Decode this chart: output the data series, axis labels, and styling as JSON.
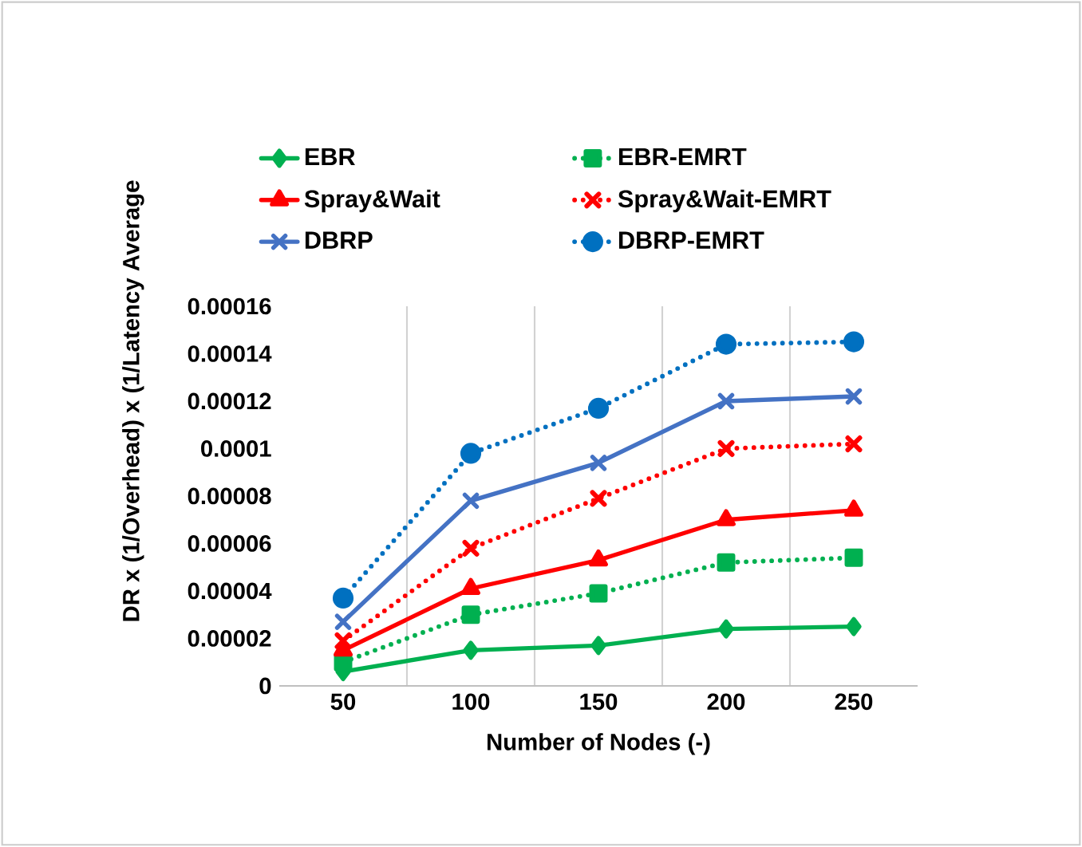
{
  "chart_data": {
    "type": "line",
    "xlabel": "Number of Nodes (-)",
    "ylabel": "DR x (1/Overhead) x (1/Latency Average",
    "categories": [
      "50",
      "100",
      "150",
      "200",
      "250"
    ],
    "ylim": [
      0,
      0.00016
    ],
    "yticks": [
      {
        "value": 0,
        "label": "0"
      },
      {
        "value": 2e-05,
        "label": "0.00002"
      },
      {
        "value": 4e-05,
        "label": "0.00004"
      },
      {
        "value": 6e-05,
        "label": "0.00006"
      },
      {
        "value": 8e-05,
        "label": "0.00008"
      },
      {
        "value": 0.0001,
        "label": "0.0001"
      },
      {
        "value": 0.00012,
        "label": "0.00012"
      },
      {
        "value": 0.00014,
        "label": "0.00014"
      },
      {
        "value": 0.00016,
        "label": "0.00016"
      }
    ],
    "grid": "x",
    "legend": "top",
    "series": [
      {
        "name": "EBR",
        "color": "#00b050",
        "marker": "diamond",
        "line_style": "solid",
        "values": [
          6e-06,
          1.5e-05,
          1.7e-05,
          2.4e-05,
          2.5e-05
        ]
      },
      {
        "name": "EBR-EMRT",
        "color": "#00b050",
        "marker": "square",
        "line_style": "dotted",
        "values": [
          1e-05,
          3e-05,
          3.9e-05,
          5.2e-05,
          5.4e-05
        ]
      },
      {
        "name": "Spray&Wait",
        "color": "#ff0000",
        "marker": "triangle",
        "line_style": "solid",
        "values": [
          1.5e-05,
          4.1e-05,
          5.3e-05,
          7e-05,
          7.4e-05
        ]
      },
      {
        "name": "Spray&Wait-EMRT",
        "color": "#ff0000",
        "marker": "cross",
        "line_style": "dotted",
        "values": [
          1.9e-05,
          5.8e-05,
          7.9e-05,
          0.0001,
          0.000102
        ]
      },
      {
        "name": "DBRP",
        "color": "#4472c4",
        "marker": "cross",
        "line_style": "solid",
        "values": [
          2.7e-05,
          7.8e-05,
          9.4e-05,
          0.00012,
          0.000122
        ]
      },
      {
        "name": "DBRP-EMRT",
        "color": "#0070c0",
        "marker": "circle",
        "line_style": "dotted",
        "values": [
          3.7e-05,
          9.8e-05,
          0.000117,
          0.000144,
          0.000145
        ]
      }
    ]
  }
}
